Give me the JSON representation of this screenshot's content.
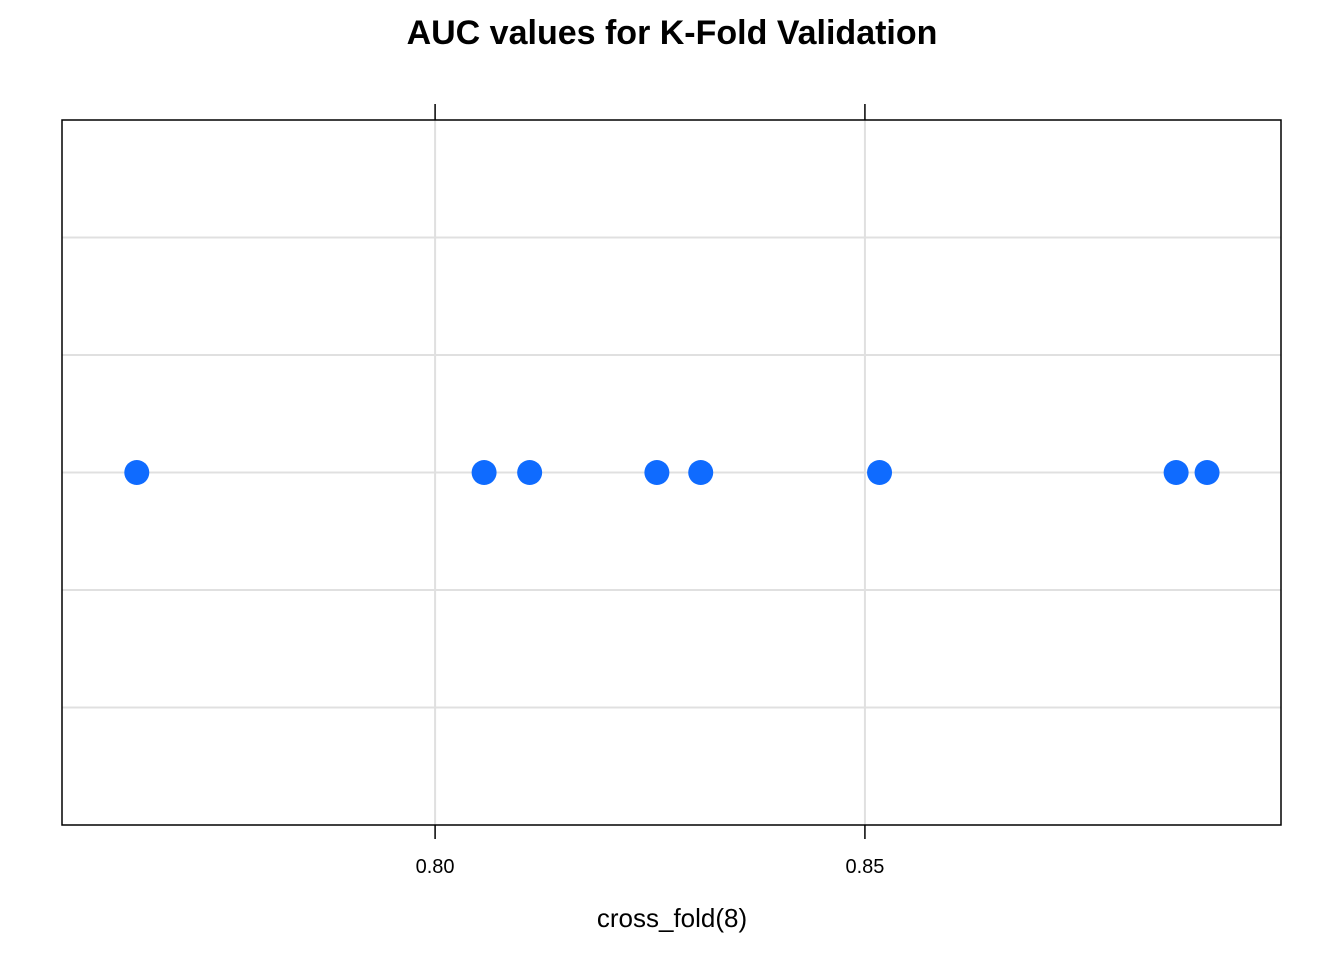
{
  "chart_data": {
    "type": "scatter",
    "title": "AUC values for K-Fold Validation",
    "xlabel": "cross_fold(8)",
    "ylabel": "",
    "xlim": [
      0.7566,
      0.8984
    ],
    "x_ticks": [
      0.8,
      0.85
    ],
    "x_tick_labels": [
      "0.80",
      "0.85"
    ],
    "grid": true,
    "y_grid_count": 5,
    "values": [
      0.7653,
      0.8057,
      0.811,
      0.8258,
      0.8309,
      0.8517,
      0.8862,
      0.8898
    ],
    "point_color": "#0F6BFF",
    "grid_color": "#E0E0E0"
  }
}
